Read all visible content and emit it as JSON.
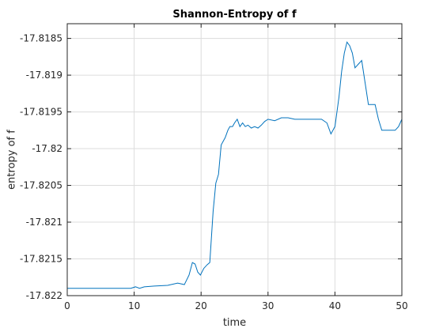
{
  "chart_data": {
    "type": "line",
    "title": "Shannon-Entropy of f",
    "xlabel": "time",
    "ylabel": "entropy of f",
    "xlim": [
      0,
      50
    ],
    "ylim": [
      -17.822,
      -17.8183
    ],
    "xticks": [
      0,
      10,
      20,
      30,
      40,
      50
    ],
    "xtick_labels": [
      "0",
      "10",
      "20",
      "30",
      "40",
      "50"
    ],
    "yticks": [
      -17.822,
      -17.8215,
      -17.821,
      -17.8205,
      -17.82,
      -17.8195,
      -17.819,
      -17.8185
    ],
    "ytick_labels": [
      "-17.822",
      "-17.8215",
      "-17.821",
      "-17.8205",
      "-17.82",
      "-17.8195",
      "-17.819",
      "-17.8185"
    ],
    "grid": true,
    "series": [
      {
        "color": "#0072bd",
        "x": [
          0,
          5,
          9.5,
          10.2,
          10.8,
          11.5,
          13,
          15,
          16.5,
          17.5,
          18.2,
          18.7,
          19.1,
          19.5,
          19.9,
          20.4,
          20.9,
          21.3,
          21.8,
          22.2,
          22.6,
          23.0,
          23.3,
          23.6,
          24.0,
          24.3,
          24.7,
          25.0,
          25.4,
          25.8,
          26.2,
          26.6,
          27.0,
          27.5,
          28.0,
          28.5,
          29.0,
          29.5,
          30.0,
          31.0,
          32.0,
          33.0,
          34.0,
          35.0,
          36.0,
          37.0,
          38.0,
          38.8,
          39.4,
          40.0,
          40.6,
          41.0,
          41.4,
          41.8,
          42.2,
          42.6,
          43.0,
          43.5,
          44.0,
          44.5,
          45.0,
          45.5,
          46.0,
          46.5,
          47.0,
          47.5,
          48.0,
          48.5,
          49.0,
          49.5,
          50.0
        ],
        "y": [
          -17.8219,
          -17.8219,
          -17.8219,
          -17.82188,
          -17.8219,
          -17.82188,
          -17.82187,
          -17.82186,
          -17.82183,
          -17.82185,
          -17.82172,
          -17.82155,
          -17.82157,
          -17.82168,
          -17.82172,
          -17.82163,
          -17.82158,
          -17.82155,
          -17.82085,
          -17.82047,
          -17.82035,
          -17.81995,
          -17.8199,
          -17.81985,
          -17.81975,
          -17.8197,
          -17.8197,
          -17.81965,
          -17.8196,
          -17.8197,
          -17.81965,
          -17.8197,
          -17.81968,
          -17.81972,
          -17.8197,
          -17.81972,
          -17.81968,
          -17.81963,
          -17.8196,
          -17.81962,
          -17.81958,
          -17.81958,
          -17.8196,
          -17.8196,
          -17.8196,
          -17.8196,
          -17.8196,
          -17.81965,
          -17.8198,
          -17.8197,
          -17.8193,
          -17.81895,
          -17.8187,
          -17.81855,
          -17.8186,
          -17.8187,
          -17.8189,
          -17.81885,
          -17.8188,
          -17.8191,
          -17.8194,
          -17.8194,
          -17.8194,
          -17.8196,
          -17.81975,
          -17.81975,
          -17.81975,
          -17.81975,
          -17.81975,
          -17.8197,
          -17.8196
        ]
      }
    ]
  }
}
